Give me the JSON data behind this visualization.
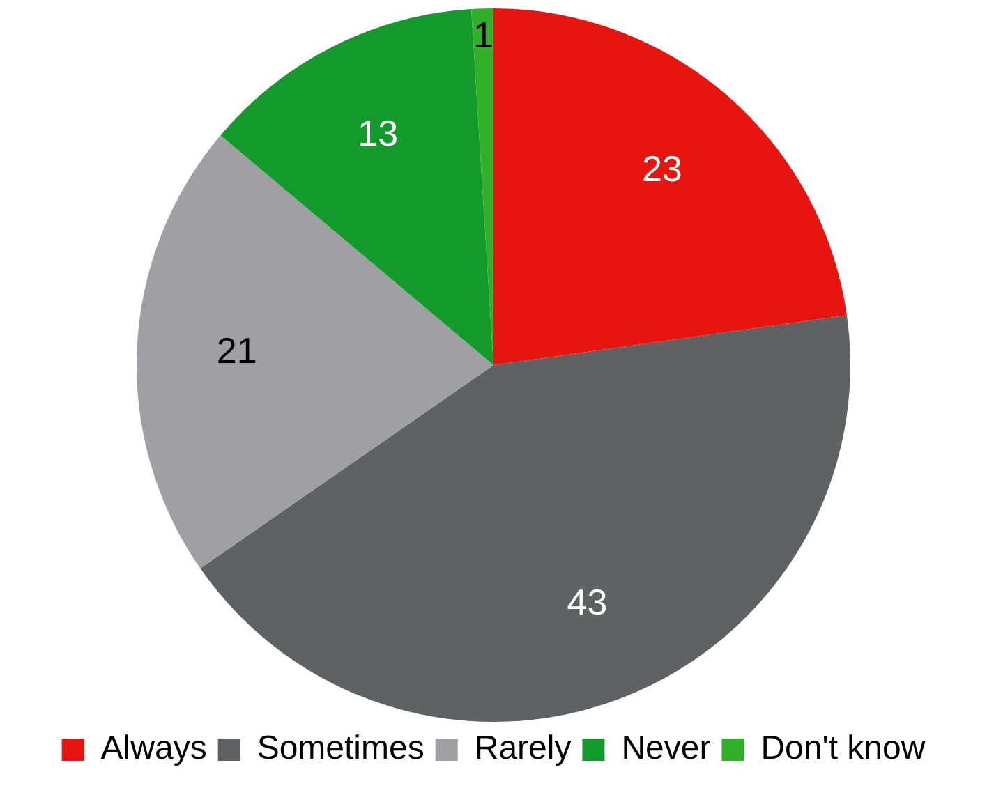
{
  "chart_data": {
    "type": "pie",
    "categories": [
      "Always",
      "Sometimes",
      "Rarely",
      "Never",
      "Don't know"
    ],
    "values": [
      23,
      43,
      21,
      13,
      1
    ],
    "colors": [
      "#e8140f",
      "#606163",
      "#a0a0a4",
      "#129a2a",
      "#33b02a"
    ],
    "data_labels": true,
    "legend": "bottom"
  }
}
